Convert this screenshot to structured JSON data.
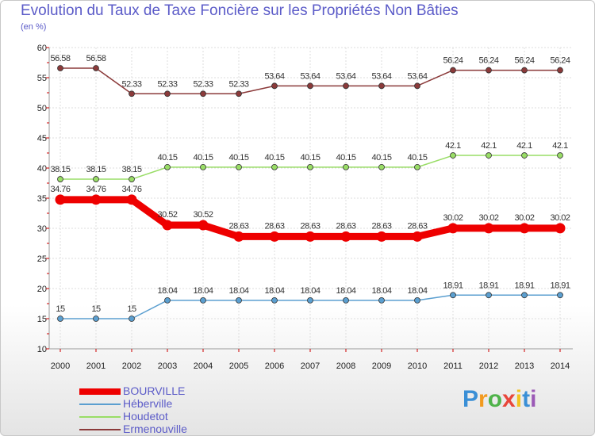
{
  "chart_data": {
    "type": "line",
    "title": "Evolution du Taux de Taxe Foncière sur les Propriétés Non Bâties",
    "subtitle": "(en %)",
    "xlabel": "",
    "ylabel": "(en %)",
    "categories": [
      "2000",
      "2001",
      "2002",
      "2003",
      "2004",
      "2005",
      "2006",
      "2007",
      "2008",
      "2009",
      "2010",
      "2011",
      "2012",
      "2013",
      "2014"
    ],
    "ylim": [
      10,
      60
    ],
    "yticks": [
      "10",
      "15",
      "20",
      "25",
      "30",
      "35",
      "40",
      "45",
      "50",
      "55",
      "60"
    ],
    "grid": true,
    "series": [
      {
        "name": "BOURVILLE",
        "color": "#ee0000",
        "bold": true,
        "values": [
          34.76,
          34.76,
          34.76,
          30.52,
          30.52,
          28.63,
          28.63,
          28.63,
          28.63,
          28.63,
          28.63,
          30.02,
          30.02,
          30.02,
          30.02
        ],
        "labels": [
          "34.76",
          "34.76",
          "34.76",
          "30.52",
          "30.52",
          "28.63",
          "28.63",
          "28.63",
          "28.63",
          "28.63",
          "28.63",
          "30.02",
          "30.02",
          "30.02",
          "30.02"
        ]
      },
      {
        "name": "Héberville",
        "color": "#5b9fd0",
        "bold": false,
        "values": [
          15,
          15,
          15,
          18.04,
          18.04,
          18.04,
          18.04,
          18.04,
          18.04,
          18.04,
          18.04,
          18.91,
          18.91,
          18.91,
          18.91
        ],
        "labels": [
          "15",
          "15",
          "15",
          "18.04",
          "18.04",
          "18.04",
          "18.04",
          "18.04",
          "18.04",
          "18.04",
          "18.04",
          "18.91",
          "18.91",
          "18.91",
          "18.91"
        ]
      },
      {
        "name": "Houdetot",
        "color": "#99dd66",
        "bold": false,
        "values": [
          38.15,
          38.15,
          38.15,
          40.15,
          40.15,
          40.15,
          40.15,
          40.15,
          40.15,
          40.15,
          40.15,
          42.1,
          42.1,
          42.1,
          42.1
        ],
        "labels": [
          "38.15",
          "38.15",
          "38.15",
          "40.15",
          "40.15",
          "40.15",
          "40.15",
          "40.15",
          "40.15",
          "40.15",
          "40.15",
          "42.1",
          "42.1",
          "42.1",
          "42.1"
        ]
      },
      {
        "name": "Ermenouville",
        "color": "#8b3a3a",
        "bold": false,
        "values": [
          56.58,
          56.58,
          52.33,
          52.33,
          52.33,
          52.33,
          53.64,
          53.64,
          53.64,
          53.64,
          53.64,
          56.24,
          56.24,
          56.24,
          56.24
        ],
        "labels": [
          "56.58",
          "56.58",
          "52.33",
          "52.33",
          "52.33",
          "52.33",
          "53.64",
          "53.64",
          "53.64",
          "53.64",
          "53.64",
          "56.24",
          "56.24",
          "56.24",
          "56.24"
        ]
      }
    ],
    "legend_position": "bottom-left"
  },
  "logo": {
    "letters": [
      "P",
      "r",
      "o",
      "x",
      "i",
      "t",
      "i"
    ],
    "colors": [
      "#3a8fd6",
      "#f29a1f",
      "#4fb34a",
      "#e8463a",
      "#f2c21f",
      "#3a8fd6",
      "#9b59b6"
    ]
  }
}
